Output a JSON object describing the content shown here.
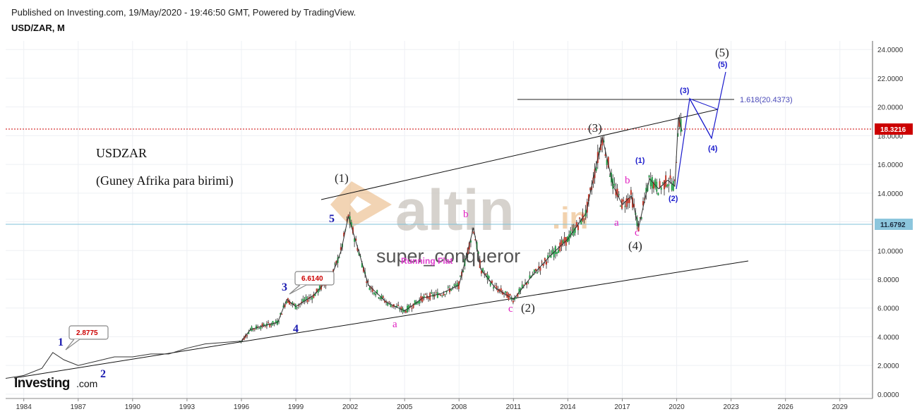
{
  "header": {
    "published": "Published on Investing.com, 19/May/2020 - 19:46:50 GMT, Powered by TradingView.",
    "symbol": "USD/ZAR, M"
  },
  "notes": {
    "title": "USDZAR",
    "subtitle": "(Guney Afrika para birimi)"
  },
  "watermark": {
    "brand": "altin",
    "brand_suffix": ".in",
    "handle": "super_conqueror",
    "running_flat": "Running Flat"
  },
  "logo": {
    "main": "Investing",
    "suffix": ".com"
  },
  "price_labels": {
    "current": "18.3216",
    "support": "11.6792",
    "fib": "1.618(20.4373)",
    "callout_1": "2.8775",
    "callout_2": "6.6140"
  },
  "wave_labels": {
    "w1": "(1)",
    "w2": "(2)",
    "w3": "(3)",
    "w4": "(4)",
    "w5": "(5)",
    "s1": "1",
    "s2": "2",
    "s3": "3",
    "s4": "4",
    "s5": "5",
    "a1": "a",
    "c1": "c",
    "b1": "b",
    "a2": "a",
    "b2": "b",
    "c2": "c",
    "p1": "(1)",
    "p2": "(2)",
    "p3": "(3)",
    "p4": "(4)",
    "p5": "(5)"
  },
  "colors": {
    "up_candle": "#26a14a",
    "down_candle": "#c0392b",
    "current_line": "#cc0000",
    "support_line": "#7fc1d9",
    "projection": "#1a1acc"
  },
  "chart_data": {
    "type": "line",
    "title": "USD/ZAR, M",
    "xlabel": "",
    "ylabel": "",
    "x_ticks": [
      "1984",
      "1987",
      "1990",
      "1993",
      "1996",
      "1999",
      "2002",
      "2005",
      "2008",
      "2011",
      "2014",
      "2017",
      "2020",
      "2023",
      "2026",
      "2029"
    ],
    "y_ticks": [
      "0.0000",
      "2.0000",
      "4.0000",
      "6.0000",
      "8.0000",
      "10.0000",
      "12.0000",
      "14.0000",
      "16.0000",
      "18.0000",
      "20.0000",
      "22.0000",
      "24.0000"
    ],
    "xlim": [
      1983.0,
      2030.8
    ],
    "ylim": [
      -0.3,
      24.6
    ],
    "grid": true,
    "series": [
      {
        "x": [
          1983.0,
          1984.0,
          1985.0,
          1985.6,
          1986.2,
          1987.0,
          1988.0,
          1989.0,
          1990.0,
          1991.0,
          1992.0,
          1993.0,
          1994.0,
          1995.0,
          1996.0,
          1996.5,
          1997.0,
          1998.0,
          1998.5,
          1999.0,
          2000.0,
          2001.0,
          2001.5,
          2001.9,
          2002.5,
          2003.0,
          2004.0,
          2005.0,
          2006.0,
          2007.0,
          2008.0,
          2008.8,
          2009.2,
          2010.0,
          2011.0,
          2011.5,
          2012.0,
          2013.0,
          2014.0,
          2015.0,
          2015.9,
          2016.5,
          2017.0,
          2017.5,
          2017.9,
          2018.5,
          2019.0,
          2019.5,
          2019.9,
          2020.1,
          2020.3
        ],
        "values": [
          1.1,
          1.3,
          1.8,
          2.9,
          2.4,
          2.0,
          2.3,
          2.6,
          2.6,
          2.8,
          2.8,
          3.2,
          3.5,
          3.6,
          3.7,
          4.5,
          4.7,
          5.0,
          6.6,
          6.1,
          6.9,
          8.3,
          10.0,
          12.4,
          9.8,
          7.6,
          6.4,
          5.8,
          6.7,
          7.0,
          7.6,
          11.6,
          8.7,
          7.4,
          6.6,
          7.4,
          8.2,
          9.6,
          10.8,
          12.6,
          17.9,
          14.5,
          13.2,
          13.8,
          11.6,
          15.0,
          14.3,
          14.9,
          14.5,
          19.3,
          18.3
        ]
      }
    ],
    "annotations": {
      "current_price": 18.3216,
      "support_level": 11.6792,
      "fib_extension": "1.618(20.4373)",
      "callouts": [
        2.8775,
        6.614
      ]
    }
  }
}
